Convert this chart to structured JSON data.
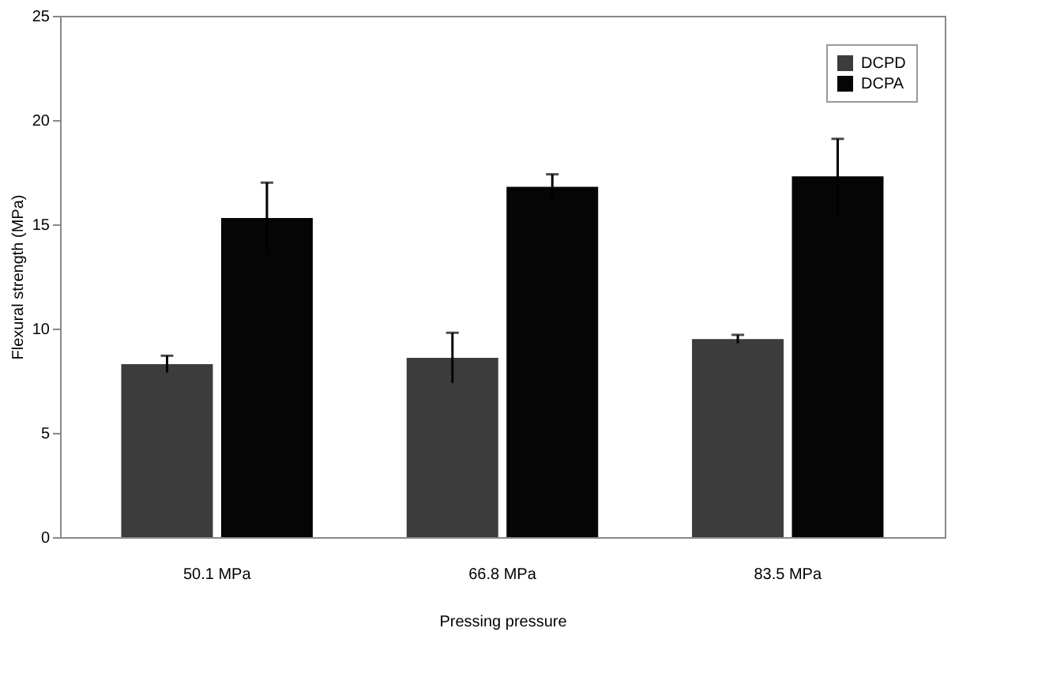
{
  "chart_data": {
    "type": "bar",
    "xlabel": "Pressing pressure",
    "ylabel": "Flexural strength (MPa)",
    "categories": [
      "50.1 MPa",
      "66.8 MPa",
      "83.5 MPa"
    ],
    "series": [
      {
        "name": "DCPD",
        "color": "#3c3c3c",
        "values": [
          8.3,
          8.6,
          9.5
        ],
        "errors": [
          0.4,
          1.2,
          0.2
        ]
      },
      {
        "name": "DCPA",
        "color": "#050505",
        "values": [
          15.3,
          16.8,
          17.3
        ],
        "errors": [
          1.7,
          0.6,
          1.8
        ]
      }
    ],
    "ylim": [
      0,
      25
    ],
    "yticks": [
      0,
      5,
      10,
      15,
      20,
      25
    ],
    "grid": false,
    "legend": "top right"
  }
}
